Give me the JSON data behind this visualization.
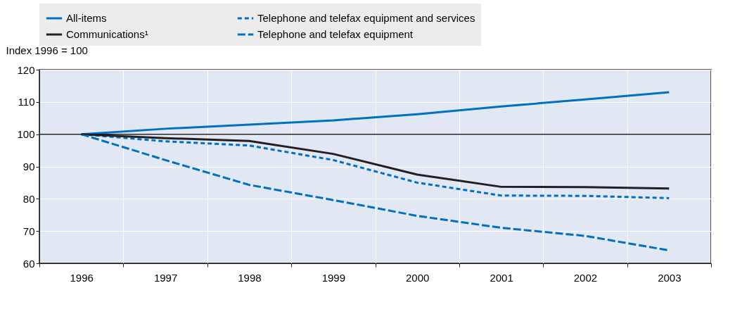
{
  "chart_data": {
    "type": "line",
    "ylabel": "Index 1996 = 100",
    "categories": [
      "1996",
      "1997",
      "1998",
      "1999",
      "2000",
      "2001",
      "2002",
      "2003"
    ],
    "series": [
      {
        "name": "All-items",
        "color": "#0070c0",
        "line_style": "solid",
        "values": [
          100,
          101.7,
          103,
          104.3,
          106.2,
          108.6,
          110.8,
          113
        ]
      },
      {
        "name": "Telephone and telefax equipment and services",
        "color": "#0070c0",
        "line_style": "dashed",
        "values": [
          100,
          97.8,
          96.5,
          92,
          85,
          81,
          80.9,
          80.2
        ]
      },
      {
        "name": "Communications¹",
        "color": "#231f20",
        "line_style": "solid",
        "values": [
          100,
          98.8,
          97.9,
          93.9,
          87.5,
          83.7,
          83.6,
          83.2
        ]
      },
      {
        "name": "Telephone and telefax equipment",
        "color": "#0070c0",
        "line_style": "longdash",
        "values": [
          100,
          92,
          84.3,
          79.6,
          74.7,
          71,
          68.5,
          64
        ]
      }
    ],
    "ylim": [
      60,
      120
    ],
    "yticks": [
      60,
      70,
      80,
      90,
      100,
      110,
      120
    ],
    "grid": true,
    "legend": "top",
    "ref_lines": [
      {
        "axis": "y",
        "value": 100,
        "color": "#231f20"
      }
    ]
  }
}
